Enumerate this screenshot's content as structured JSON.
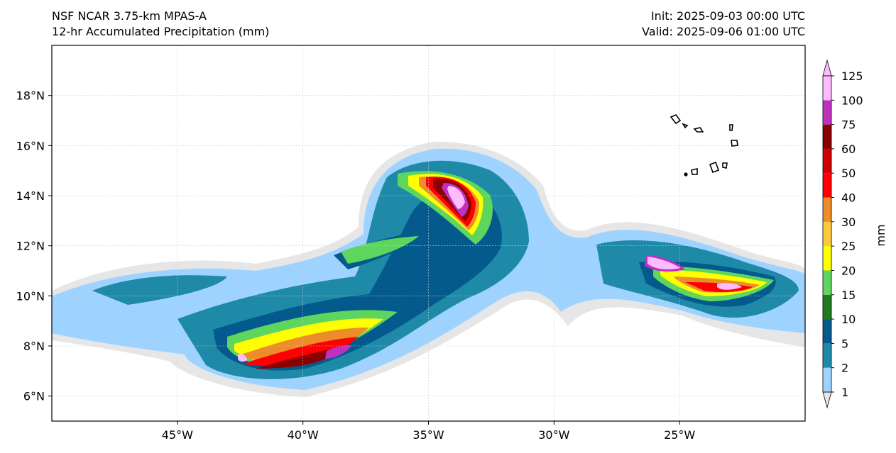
{
  "header": {
    "model": "NSF NCAR 3.75-km MPAS-A",
    "field": "12-hr Accumulated Precipitation (mm)",
    "init": "Init: 2025-09-03 00:00 UTC",
    "valid": "Valid: 2025-09-06 01:00 UTC"
  },
  "map": {
    "lon_range": [
      -50,
      -20
    ],
    "lat_range": [
      5,
      20
    ],
    "lon_ticks": [
      {
        "value": -45,
        "label": "45°W"
      },
      {
        "value": -40,
        "label": "40°W"
      },
      {
        "value": -35,
        "label": "35°W"
      },
      {
        "value": -30,
        "label": "30°W"
      },
      {
        "value": -25,
        "label": "25°W"
      }
    ],
    "lat_ticks": [
      {
        "value": 6,
        "label": "6°N"
      },
      {
        "value": 8,
        "label": "8°N"
      },
      {
        "value": 10,
        "label": "10°N"
      },
      {
        "value": 12,
        "label": "12°N"
      },
      {
        "value": 14,
        "label": "14°N"
      },
      {
        "value": 16,
        "label": "16°N"
      },
      {
        "value": 18,
        "label": "18°N"
      }
    ],
    "gridlines": true
  },
  "colorbar": {
    "unit": "mm",
    "levels": [
      "1",
      "2",
      "5",
      "10",
      "15",
      "20",
      "25",
      "30",
      "40",
      "50",
      "60",
      "75",
      "100",
      "125"
    ],
    "colors": [
      "#e6e6e6",
      "#9ed2ff",
      "#1e8aa8",
      "#045a8d",
      "#1f7a1f",
      "#5ed65e",
      "#ffff00",
      "#ffc83c",
      "#ee8c2a",
      "#ff0000",
      "#d00000",
      "#8b0000",
      "#c030c0",
      "#ffbbff"
    ]
  }
}
